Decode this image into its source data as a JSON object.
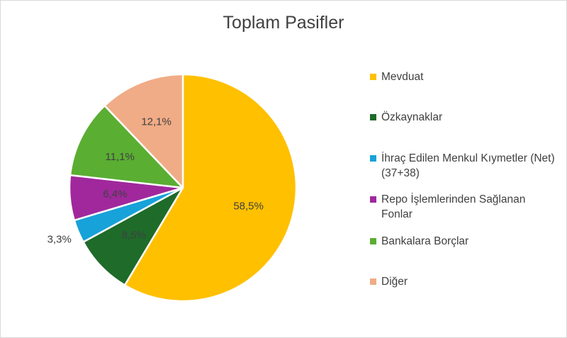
{
  "chart_data": {
    "type": "pie",
    "title": "Toplam Pasifler",
    "legend_position": "right",
    "slices": [
      {
        "name": "Mevduat",
        "value": 58.5,
        "label": "58,5%",
        "color": "#FFC000"
      },
      {
        "name": "Özkaynaklar",
        "value": 8.5,
        "label": "8,5%",
        "color": "#1E6B2A"
      },
      {
        "name": "İhraç Edilen Menkul Kıymetler (Net) (37+38)",
        "value": 3.3,
        "label": "3,3%",
        "color": "#17A2D9"
      },
      {
        "name": "Repo İşlemlerinden Sağlanan Fonlar",
        "value": 6.4,
        "label": "6,4%",
        "color": "#A0289C"
      },
      {
        "name": "Bankalara Borçlar",
        "value": 11.1,
        "label": "11,1%",
        "color": "#5AAE32"
      },
      {
        "name": "Diğer",
        "value": 12.1,
        "label": "12,1%",
        "color": "#F0AC86"
      }
    ]
  }
}
